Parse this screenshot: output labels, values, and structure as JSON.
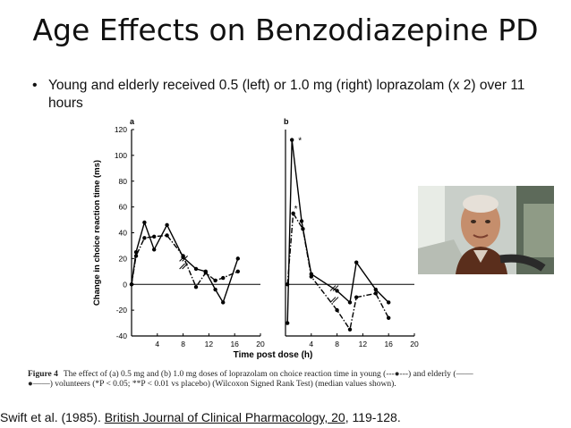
{
  "slide": {
    "title": "Age Effects on Benzodiazepine PD",
    "bullet": "Young and elderly received 0.5 (left) or 1.0 mg (right) loprazolam (x 2) over 11 hours",
    "caption_label": "Figure 4",
    "caption_text": "The effect of (a) 0.5 mg and (b) 1.0 mg doses of loprazolam on choice reaction time in young (---●---) and elderly (——●——) volunteers (*P < 0.05; **P < 0.01 vs placebo) (Wilcoxon Signed Rank Test) (median values shown).",
    "citation_prefix": "Swift et al. (1985). ",
    "citation_journal": "British Journal of Clinical Pharmacology, 20",
    "citation_suffix": ", 119-128."
  },
  "chart_data": [
    {
      "type": "line",
      "panel_label": "a",
      "xlabel": "Time post dose (h)",
      "ylabel": "Change in choice reaction time (ms)",
      "xlim": [
        0,
        20
      ],
      "ylim": [
        -40,
        120
      ],
      "xticks": [
        4,
        8,
        12,
        16,
        20
      ],
      "yticks": [
        -40,
        -20,
        0,
        20,
        40,
        60,
        80,
        100,
        120
      ],
      "series": [
        {
          "style": "solid",
          "x": [
            0,
            0.7,
            2,
            3.5,
            5.5,
            8,
            10,
            11.5,
            13,
            14.2,
            16.5
          ],
          "y": [
            0,
            25,
            48,
            27,
            46,
            21,
            12,
            10,
            -4,
            -14,
            20
          ]
        },
        {
          "style": "dashdot",
          "x": [
            0,
            0.7,
            2,
            3.5,
            5.5,
            8,
            10,
            11.5,
            13,
            14.2,
            16.5
          ],
          "y": [
            0,
            22,
            36,
            37,
            38,
            22,
            -2,
            9,
            3,
            5,
            10
          ]
        }
      ]
    },
    {
      "type": "line",
      "panel_label": "b",
      "xlim": [
        0,
        20
      ],
      "ylim": [
        -40,
        120
      ],
      "xticks": [
        4,
        8,
        12,
        16,
        20
      ],
      "annotations": [
        "*",
        "*"
      ],
      "series": [
        {
          "style": "solid",
          "x": [
            0.3,
            1,
            2.5,
            4,
            8,
            10,
            11,
            14,
            16
          ],
          "y": [
            -30,
            112,
            49,
            8,
            -5,
            -14,
            17,
            -4,
            -14
          ]
        },
        {
          "style": "dashdot",
          "x": [
            0.3,
            1.2,
            2.7,
            4,
            8,
            10,
            11,
            14,
            16
          ],
          "y": [
            0,
            55,
            43,
            6,
            -20,
            -35,
            -10,
            -7,
            -26
          ]
        }
      ]
    }
  ]
}
